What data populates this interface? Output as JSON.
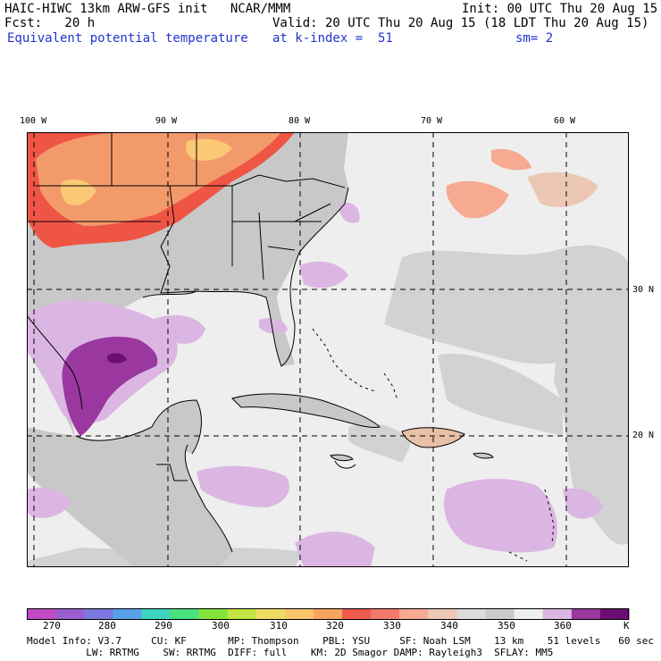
{
  "header": {
    "model_title": "HAIC-HIWC 13km ARW-GFS init   NCAR/MMM",
    "init": "Init: 00 UTC Thu 20 Aug 15",
    "fcst": "Fcst:   20 h",
    "valid": "Valid: 20 UTC Thu 20 Aug 15 (18 LDT Thu 20 Aug 15)",
    "field": "Equivalent potential temperature",
    "level": "at k-index =  51",
    "smoothing": "sm= 2"
  },
  "map": {
    "lon_labels": [
      "100 W",
      "90 W",
      "80 W",
      "70 W",
      "60 W"
    ],
    "lat_labels": [
      "30 N",
      "20 N"
    ],
    "colors": {
      "land_gray": "#c8c8c8",
      "ocean_light": "#eeeeee",
      "ocean_mid": "#d2d2d2",
      "warm_orange": "#f39a6b",
      "warm_red": "#ee5545",
      "warm_yellow": "#fbc975",
      "cool_lilac": "#dcb6e2",
      "cool_purple": "#9a38a0"
    }
  },
  "colorbar": {
    "unit": "K",
    "labels": [
      "270",
      "280",
      "290",
      "300",
      "310",
      "320",
      "330",
      "340",
      "350",
      "360"
    ],
    "colors": [
      "#c24bc4",
      "#9a5ed0",
      "#7d78e0",
      "#5aa0e8",
      "#3ed4c2",
      "#4ae07e",
      "#84e43e",
      "#c2e442",
      "#ecdc62",
      "#f9c66e",
      "#f6a45e",
      "#ef5b4c",
      "#f27a6a",
      "#f6aa92",
      "#ecc8b4",
      "#dcdcdc",
      "#cacaca",
      "#eeeeee",
      "#dcb6e2",
      "#9a38a0",
      "#6c0f74"
    ]
  },
  "footer": {
    "line1": "Model Info: V3.7     CU: KF       MP: Thompson    PBL: YSU     SF: Noah LSM    13 km    51 levels   60 sec",
    "line2": "          LW: RRTMG    SW: RRTMG  DIFF: full    KM: 2D Smagor DAMP: Rayleigh3  SFLAY: MM5"
  }
}
